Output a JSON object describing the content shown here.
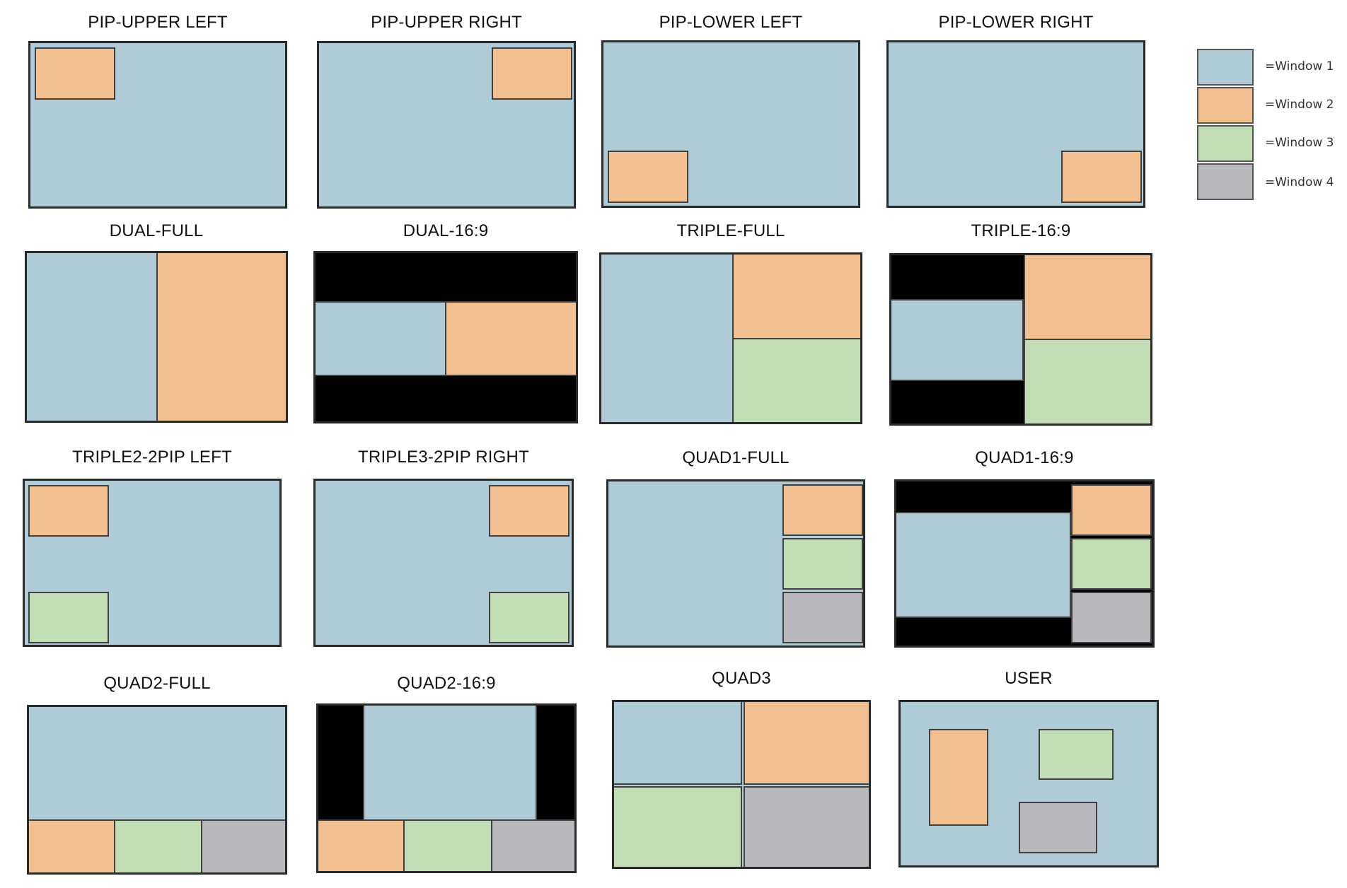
{
  "layouts": [
    {
      "id": "pip-upper-left",
      "title": "PIP-UPPER LEFT"
    },
    {
      "id": "pip-upper-right",
      "title": "PIP-UPPER RIGHT"
    },
    {
      "id": "pip-lower-left",
      "title": "PIP-LOWER LEFT"
    },
    {
      "id": "pip-lower-right",
      "title": "PIP-LOWER RIGHT"
    },
    {
      "id": "dual-full",
      "title": "DUAL-FULL"
    },
    {
      "id": "dual-16-9",
      "title": "DUAL-16:9"
    },
    {
      "id": "triple-full",
      "title": "TRIPLE-FULL"
    },
    {
      "id": "triple-16-9",
      "title": "TRIPLE-16:9"
    },
    {
      "id": "triple2-2pip-left",
      "title": "TRIPLE2-2PIP LEFT"
    },
    {
      "id": "triple3-2pip-right",
      "title": "TRIPLE3-2PIP RIGHT"
    },
    {
      "id": "quad1-full",
      "title": "QUAD1-FULL"
    },
    {
      "id": "quad1-16-9",
      "title": "QUAD1-16:9"
    },
    {
      "id": "quad2-full",
      "title": "QUAD2-FULL"
    },
    {
      "id": "quad2-16-9",
      "title": "QUAD2-16:9"
    },
    {
      "id": "quad3",
      "title": "QUAD3"
    },
    {
      "id": "user",
      "title": "USER"
    }
  ],
  "legend": [
    {
      "label": "=Window 1",
      "color": "#aecbd6"
    },
    {
      "label": "=Window 2",
      "color": "#f1bf90"
    },
    {
      "label": "=Window 3",
      "color": "#c2ddb5"
    },
    {
      "label": "=Window 4",
      "color": "#b9b9bd"
    }
  ]
}
